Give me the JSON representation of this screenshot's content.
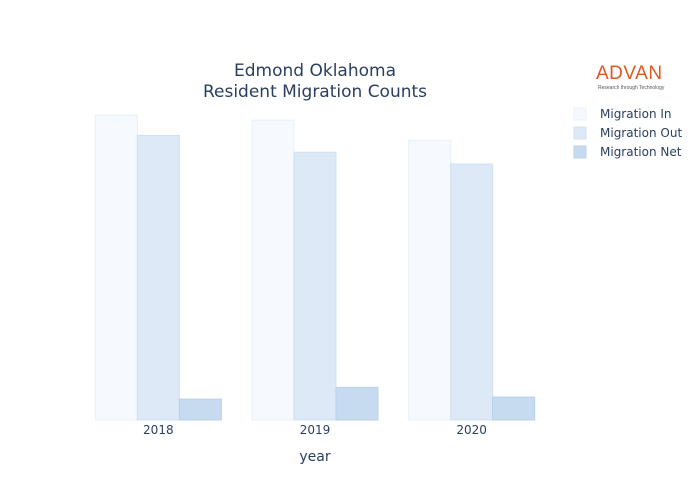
{
  "title_lines": [
    "Edmond Oklahoma",
    "Resident Migration Counts"
  ],
  "logo": {
    "text": "ADVAN",
    "tagline": "Research through Technology"
  },
  "colors": {
    "migration_in": "#f6fafe",
    "migration_out": "#dde9f6",
    "migration_net": "#c6dbef"
  },
  "chart_data": {
    "type": "bar",
    "title": "Edmond Oklahoma Resident Migration Counts",
    "xlabel": "year",
    "ylabel": "",
    "categories": [
      "2018",
      "2019",
      "2020"
    ],
    "series": [
      {
        "name": "Migration In",
        "values": [
          9050,
          8900,
          8300
        ]
      },
      {
        "name": "Migration Out",
        "values": [
          8450,
          7950,
          7600
        ]
      },
      {
        "name": "Migration Net",
        "values": [
          620,
          970,
          680
        ]
      }
    ],
    "ylim": [
      0,
      9500
    ],
    "legend_position": "top-right",
    "grid": false,
    "y_ticks_shown": false
  }
}
